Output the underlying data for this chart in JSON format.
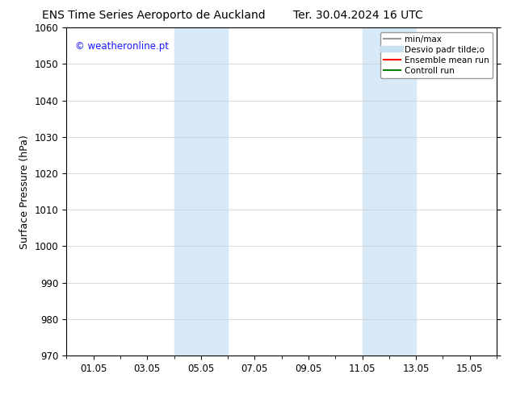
{
  "title_left": "ENS Time Series Aeroporto de Auckland",
  "title_right": "Ter. 30.04.2024 16 UTC",
  "ylabel": "Surface Pressure (hPa)",
  "ylim": [
    970,
    1060
  ],
  "yticks": [
    970,
    980,
    990,
    1000,
    1010,
    1020,
    1030,
    1040,
    1050,
    1060
  ],
  "xtick_labels": [
    "01.05",
    "03.05",
    "05.05",
    "07.05",
    "09.05",
    "11.05",
    "13.05",
    "15.05"
  ],
  "xtick_positions": [
    1,
    3,
    5,
    7,
    9,
    11,
    13,
    15
  ],
  "xlim": [
    0,
    16
  ],
  "watermark": "© weatheronline.pt",
  "watermark_color": "#1a1aff",
  "bg_color": "#ffffff",
  "shaded_bands": [
    {
      "x_start": 4.0,
      "x_end": 6.0
    },
    {
      "x_start": 11.0,
      "x_end": 13.0
    }
  ],
  "shaded_color": "#d8eaf8",
  "legend_items": [
    {
      "label": "min/max",
      "color": "#999999",
      "lw": 1.5
    },
    {
      "label": "Desvio padr tilde;o",
      "color": "#c8dff0",
      "lw": 6
    },
    {
      "label": "Ensemble mean run",
      "color": "#ff0000",
      "lw": 1.5
    },
    {
      "label": "Controll run",
      "color": "#008000",
      "lw": 1.5
    }
  ],
  "title_fontsize": 10,
  "axis_label_fontsize": 9,
  "tick_fontsize": 8.5,
  "legend_fontsize": 7.5,
  "watermark_fontsize": 8.5
}
